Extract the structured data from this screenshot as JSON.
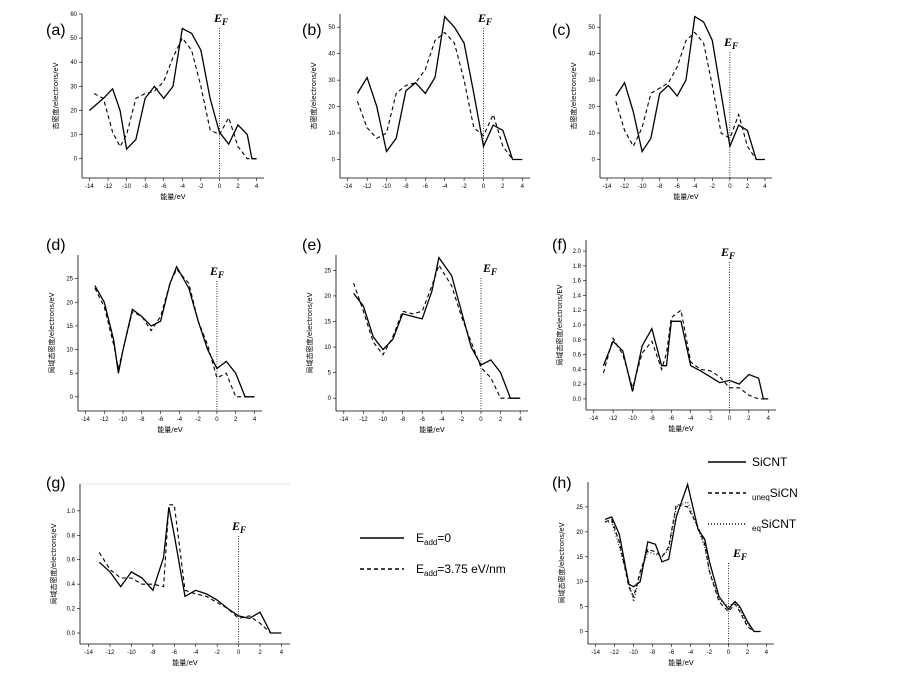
{
  "chart_data": [
    {
      "panel": "(a)",
      "type": "line",
      "fermi_label": "E_F",
      "fermi_x": 0,
      "xlabel": "能量/eV",
      "ylabel": "态密度/electrons/eV",
      "xlim": [
        -14.8,
        4.8
      ],
      "ylim": [
        -8,
        60
      ],
      "xticks": [
        -14,
        -12,
        -10,
        -8,
        -6,
        -4,
        -2,
        0,
        2,
        4
      ],
      "yticks": [
        0,
        10,
        20,
        30,
        40,
        50,
        60
      ],
      "series": [
        {
          "style": "solid",
          "x": [
            -14,
            -12.5,
            -11.5,
            -10.7,
            -10,
            -9,
            -8,
            -7,
            -6,
            -5,
            -4,
            -3,
            -2,
            -1,
            0,
            1,
            2,
            3,
            3.5,
            4
          ],
          "y": [
            20,
            25,
            29,
            20,
            4,
            8,
            25,
            30,
            25,
            30,
            54,
            52,
            45,
            25,
            11,
            6,
            14,
            10,
            0,
            0
          ]
        },
        {
          "style": "dashed",
          "x": [
            -13.5,
            -12.5,
            -11.5,
            -10.7,
            -10,
            -9,
            -8,
            -7,
            -6,
            -5,
            -4,
            -3,
            -2,
            -1,
            0,
            1,
            2,
            3,
            4
          ],
          "y": [
            27,
            25,
            11,
            5,
            10,
            25,
            27,
            28,
            32,
            42,
            50,
            45,
            30,
            12,
            10,
            17,
            5,
            0,
            0
          ]
        }
      ]
    },
    {
      "panel": "(b)",
      "type": "line",
      "fermi_label": "E_F",
      "fermi_x": 0,
      "xlabel": "",
      "ylabel": "态密度/electrons/eV",
      "xlim": [
        -14.8,
        4.8
      ],
      "ylim": [
        -7,
        55
      ],
      "xticks": [
        -14,
        -12,
        -10,
        -8,
        -6,
        -4,
        -2,
        0,
        2,
        4
      ],
      "yticks": [
        0,
        10,
        20,
        30,
        40,
        50
      ],
      "series": [
        {
          "style": "solid",
          "x": [
            -13,
            -12,
            -11,
            -10,
            -9,
            -8,
            -7,
            -6,
            -5,
            -4,
            -3,
            -2,
            -1,
            0,
            1,
            2,
            3,
            3.5,
            4
          ],
          "y": [
            25,
            31,
            20,
            3,
            8,
            26,
            29,
            25,
            31,
            54,
            50,
            44,
            25,
            5,
            13,
            11,
            0,
            0,
            0
          ]
        },
        {
          "style": "dashed",
          "x": [
            -13,
            -12,
            -11,
            -10,
            -9,
            -8,
            -7,
            -6,
            -5,
            -4,
            -3,
            -2,
            -1,
            0,
            1,
            2,
            3,
            4
          ],
          "y": [
            22,
            12,
            8,
            10,
            25,
            28,
            29,
            34,
            45,
            48,
            44,
            30,
            12,
            9,
            17,
            5,
            0,
            0
          ]
        }
      ]
    },
    {
      "panel": "(c)",
      "type": "line",
      "fermi_label": "E_F",
      "fermi_x": 0,
      "xlabel": "能量/eV",
      "ylabel": "态密度/electrons/eV",
      "xlim": [
        -14.8,
        4.8
      ],
      "ylim": [
        -7,
        55
      ],
      "xticks": [
        -14,
        -12,
        -10,
        -8,
        -6,
        -4,
        -2,
        0,
        2,
        4
      ],
      "yticks": [
        0,
        10,
        20,
        30,
        40,
        50
      ],
      "series": [
        {
          "style": "solid",
          "x": [
            -13,
            -12,
            -11,
            -10,
            -9,
            -8,
            -7,
            -6,
            -5,
            -4,
            -3,
            -2,
            -1,
            0,
            1,
            2,
            3,
            3.5,
            4
          ],
          "y": [
            24,
            29,
            18,
            3,
            8,
            25,
            28,
            24,
            30,
            54,
            52,
            45,
            25,
            5,
            13,
            11,
            0,
            0,
            0
          ]
        },
        {
          "style": "dashed",
          "x": [
            -13,
            -12,
            -11,
            -10,
            -9,
            -8,
            -7,
            -6,
            -5,
            -4,
            -3,
            -2,
            -1,
            0,
            1,
            2,
            3,
            4
          ],
          "y": [
            22,
            11,
            5,
            12,
            25,
            27,
            29,
            35,
            45,
            48,
            44,
            28,
            10,
            8,
            17,
            5,
            0,
            0
          ]
        }
      ]
    },
    {
      "panel": "(d)",
      "type": "line",
      "fermi_label": "E_F",
      "fermi_x": 0,
      "xlabel": "能量/eV",
      "ylabel": "局域态密度/electrons/eV",
      "xlim": [
        -14.8,
        4.8
      ],
      "ylim": [
        -3,
        30
      ],
      "xticks": [
        -14,
        -12,
        -10,
        -8,
        -6,
        -4,
        -2,
        0,
        2,
        4
      ],
      "yticks": [
        0,
        5,
        10,
        15,
        20,
        25
      ],
      "series": [
        {
          "style": "solid",
          "x": [
            -13,
            -12,
            -11,
            -10.5,
            -10,
            -9,
            -8,
            -7,
            -6,
            -5,
            -4.3,
            -3,
            -2,
            -1,
            0,
            1,
            2,
            3,
            3.5,
            4
          ],
          "y": [
            23.5,
            20,
            12,
            5,
            10,
            18.5,
            17,
            15,
            16,
            24,
            27.5,
            23,
            16,
            10,
            6,
            7.5,
            5,
            0,
            0,
            0
          ]
        },
        {
          "style": "dashed",
          "x": [
            -13,
            -12,
            -11,
            -10.5,
            -10,
            -9,
            -8,
            -7,
            -6,
            -5,
            -4.3,
            -3,
            -2,
            -1,
            0,
            1,
            2,
            3,
            4
          ],
          "y": [
            23,
            19,
            11,
            6,
            10,
            18,
            17,
            14,
            17,
            24,
            27,
            24,
            16,
            11,
            4,
            5,
            0,
            0,
            0
          ]
        }
      ]
    },
    {
      "panel": "(e)",
      "type": "line",
      "fermi_label": "E_F",
      "fermi_x": 0,
      "xlabel": "能量/eV",
      "ylabel": "局域态密度/electrons/eV",
      "xlim": [
        -14.8,
        4.8
      ],
      "ylim": [
        -2.5,
        28
      ],
      "xticks": [
        -14,
        -12,
        -10,
        -8,
        -6,
        -4,
        -2,
        0,
        2,
        4
      ],
      "yticks": [
        0,
        5,
        10,
        15,
        20,
        25
      ],
      "series": [
        {
          "style": "solid",
          "x": [
            -13,
            -12,
            -11,
            -10,
            -9,
            -8,
            -7,
            -6,
            -5,
            -4.3,
            -3,
            -2,
            -1,
            0,
            1,
            2,
            3,
            3.5,
            4
          ],
          "y": [
            20.5,
            18,
            12,
            9.5,
            11.5,
            16.5,
            16,
            15.5,
            21,
            27.5,
            24,
            17,
            10,
            6.5,
            7.5,
            5,
            0,
            0,
            0
          ]
        },
        {
          "style": "dashed",
          "x": [
            -13,
            -12,
            -11,
            -10,
            -9,
            -8,
            -7,
            -6,
            -5,
            -4.3,
            -3,
            -2,
            -1,
            0,
            1,
            2,
            3,
            4
          ],
          "y": [
            22.5,
            17,
            11,
            8.5,
            12,
            17,
            16.5,
            17,
            22,
            26,
            22,
            16,
            11,
            6,
            4,
            0,
            0,
            0
          ]
        }
      ]
    },
    {
      "panel": "(f)",
      "type": "line",
      "fermi_label": "E_F",
      "fermi_x": 0,
      "xlabel": "能量/eV",
      "ylabel": "局域态密度/electrons/EV",
      "xlim": [
        -14.8,
        4.8
      ],
      "ylim": [
        -0.15,
        2.15
      ],
      "xticks": [
        -14,
        -12,
        -10,
        -8,
        -6,
        -4,
        -2,
        0,
        2,
        4
      ],
      "yticks": [
        0.0,
        0.2,
        0.4,
        0.6,
        0.8,
        1.0,
        1.2,
        1.4,
        1.6,
        1.8,
        2.0
      ],
      "series": [
        {
          "style": "solid",
          "x": [
            -13,
            -12,
            -11,
            -10,
            -9,
            -8,
            -7,
            -6.5,
            -6,
            -5,
            -4,
            -3,
            -2,
            -1,
            0,
            1,
            2,
            3,
            3.5,
            4
          ],
          "y": [
            0.45,
            0.78,
            0.65,
            0.1,
            0.72,
            0.95,
            0.45,
            0.45,
            1.05,
            1.05,
            0.45,
            0.38,
            0.3,
            0.22,
            0.25,
            0.2,
            0.33,
            0.28,
            0,
            0
          ]
        },
        {
          "style": "dashed",
          "x": [
            -13,
            -12,
            -11,
            -10,
            -9,
            -8,
            -7,
            -6.5,
            -6,
            -5,
            -4,
            -3,
            -2,
            -1,
            0,
            1,
            2,
            3,
            4
          ],
          "y": [
            0.35,
            0.82,
            0.6,
            0.15,
            0.62,
            0.78,
            0.4,
            0.62,
            1.1,
            1.2,
            0.5,
            0.4,
            0.38,
            0.3,
            0.15,
            0.15,
            0.05,
            0,
            0
          ]
        }
      ]
    },
    {
      "panel": "(g)",
      "type": "line",
      "fermi_label": "E_F",
      "fermi_x": 0,
      "xlabel": "能量/eV",
      "ylabel": "局域态密度/electrons/eV",
      "xlim": [
        -14.8,
        4.8
      ],
      "ylim": [
        -0.09,
        1.22
      ],
      "xticks": [
        -14,
        -12,
        -10,
        -8,
        -6,
        -4,
        -2,
        0,
        2,
        4
      ],
      "yticks": [
        0.0,
        0.2,
        0.4,
        0.6,
        0.8,
        1.0
      ],
      "series": [
        {
          "style": "solid",
          "x": [
            -13,
            -12,
            -11,
            -10,
            -9,
            -8,
            -7,
            -6.5,
            -6,
            -5,
            -4,
            -3,
            -2,
            -1,
            0,
            1,
            2,
            3,
            4
          ],
          "y": [
            0.58,
            0.5,
            0.38,
            0.5,
            0.45,
            0.35,
            0.62,
            1.03,
            0.8,
            0.3,
            0.35,
            0.32,
            0.27,
            0.2,
            0.14,
            0.12,
            0.17,
            0.0,
            0.0
          ]
        },
        {
          "style": "dashed",
          "x": [
            -13,
            -12,
            -11,
            -10,
            -9,
            -8,
            -7,
            -6.5,
            -6,
            -5,
            -4,
            -3,
            -2,
            -1,
            0,
            1,
            2,
            3,
            4
          ],
          "y": [
            0.66,
            0.52,
            0.45,
            0.45,
            0.4,
            0.4,
            0.38,
            1.05,
            1.05,
            0.35,
            0.32,
            0.3,
            0.25,
            0.2,
            0.12,
            0.14,
            0.08,
            0.0,
            0.0
          ]
        }
      ]
    },
    {
      "panel": "(h)",
      "type": "line",
      "fermi_label": "E_F",
      "fermi_x": 0,
      "xlabel": "能量/eV",
      "ylabel": "局域态密度/electrons/eV",
      "xlim": [
        -14.8,
        4.8
      ],
      "ylim": [
        -2.5,
        30
      ],
      "xticks": [
        -14,
        -12,
        -10,
        -8,
        -6,
        -4,
        -2,
        0,
        2,
        4
      ],
      "yticks": [
        0,
        5,
        10,
        15,
        20,
        25
      ],
      "series": [
        {
          "style": "solid",
          "x": [
            -13,
            -12.3,
            -11.5,
            -10.5,
            -10,
            -9.3,
            -8.5,
            -7.7,
            -7,
            -6.3,
            -5.5,
            -4.3,
            -3.2,
            -2.5,
            -2,
            -1,
            0,
            0.7,
            1.2,
            2,
            2.7,
            3.4
          ],
          "y": [
            22.5,
            23,
            19.5,
            9.5,
            9,
            10,
            18,
            17.5,
            14,
            14.5,
            23,
            29.5,
            20.5,
            18.5,
            14,
            7,
            4.5,
            6,
            5,
            2,
            0,
            0
          ]
        },
        {
          "style": "dashed",
          "x": [
            -13,
            -12.3,
            -11.5,
            -10.5,
            -10,
            -9.3,
            -8.5,
            -7.7,
            -7,
            -6.3,
            -5.5,
            -4.3,
            -3.2,
            -2.5,
            -2,
            -1,
            0,
            0.7,
            1.2,
            2,
            2.7,
            3.4
          ],
          "y": [
            22,
            22.5,
            18,
            9,
            7,
            12,
            16.5,
            16,
            15,
            17,
            25.5,
            25,
            21,
            17.5,
            12,
            6,
            4,
            5.5,
            4,
            1,
            0,
            0
          ]
        },
        {
          "style": "dotted",
          "x": [
            -13,
            -12.3,
            -11.5,
            -10.5,
            -10,
            -9.3,
            -8.5,
            -7.7,
            -7,
            -6.3,
            -5.5,
            -4.3,
            -3.2,
            -2.5,
            -2,
            -1,
            0,
            0.7,
            1.2,
            2,
            2.7,
            3.4
          ],
          "y": [
            22,
            22,
            17,
            10,
            6,
            11.5,
            16,
            15.5,
            15,
            16.5,
            25,
            26,
            20.5,
            17,
            12,
            6.5,
            5,
            6,
            4.5,
            1.5,
            0,
            0
          ]
        }
      ]
    }
  ],
  "legends": {
    "field": [
      {
        "style": "solid",
        "label_main": "E",
        "label_sub": "add",
        "label_rest": "=0"
      },
      {
        "style": "dashed",
        "label_main": "E",
        "label_sub": "add",
        "label_rest": "=3.75 eV/nm"
      }
    ],
    "structure": [
      {
        "style": "solid",
        "label_sub": "",
        "label_main": "SiCNT"
      },
      {
        "style": "dashed",
        "label_sub": "uneq",
        "label_main": "SiCN"
      },
      {
        "style": "dotted",
        "label_sub": "eq",
        "label_main": "SiCNT"
      }
    ]
  },
  "fermi_text": {
    "main": "E",
    "sub": "F"
  }
}
